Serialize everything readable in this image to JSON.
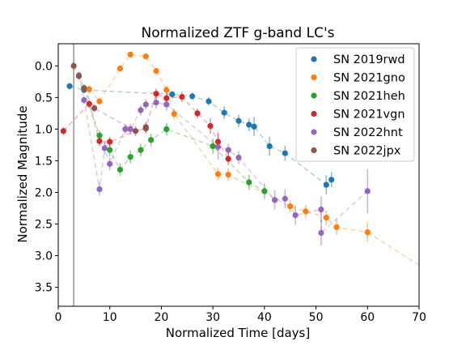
{
  "chart_data": {
    "type": "scatter",
    "title": "Normalized ZTF g-band LC's",
    "xlabel": "Normalized Time [days]",
    "ylabel": "Normalized Magnitude",
    "xlim": [
      0,
      70
    ],
    "ylim": [
      3.8,
      -0.35
    ],
    "y_inverted": true,
    "legend_position": "top-right",
    "xticks": [
      0,
      10,
      20,
      30,
      40,
      50,
      60,
      70
    ],
    "yticks": [
      0.0,
      0.5,
      1.0,
      1.5,
      2.0,
      2.5,
      3.0,
      3.5
    ],
    "xtick_labels": [
      "0",
      "10",
      "20",
      "30",
      "40",
      "50",
      "60",
      "70"
    ],
    "ytick_labels": [
      "0.0",
      "0.5",
      "1.0",
      "1.5",
      "2.0",
      "2.5",
      "3.0",
      "3.5"
    ],
    "series": [
      {
        "name": "SN 2019rwd",
        "color": "#1f77b4",
        "points": [
          {
            "x": 2.2,
            "y": 0.32,
            "err": 0.05
          },
          {
            "x": 5.0,
            "y": 0.38,
            "err": 0.05
          },
          {
            "x": 22.1,
            "y": 0.45,
            "err": 0.06
          },
          {
            "x": 26.0,
            "y": 0.48,
            "err": 0.06
          },
          {
            "x": 29.2,
            "y": 0.56,
            "err": 0.07
          },
          {
            "x": 32.2,
            "y": 0.74,
            "err": 0.1
          },
          {
            "x": 35.0,
            "y": 0.87,
            "err": 0.1
          },
          {
            "x": 37.0,
            "y": 0.93,
            "err": 0.1
          },
          {
            "x": 38.0,
            "y": 0.96,
            "err": 0.15
          },
          {
            "x": 41.0,
            "y": 1.27,
            "err": 0.15
          },
          {
            "x": 44.0,
            "y": 1.38,
            "err": 0.12
          },
          {
            "x": 52.0,
            "y": 1.88,
            "err": 0.15
          },
          {
            "x": 53.0,
            "y": 1.8,
            "err": 0.12
          }
        ]
      },
      {
        "name": "SN 2021gno",
        "color": "#ff7f0e",
        "points": [
          {
            "x": 6.0,
            "y": 0.37,
            "err": 0.06
          },
          {
            "x": 8.0,
            "y": 0.56,
            "err": 0.06
          },
          {
            "x": 12.0,
            "y": 0.04,
            "err": 0.05
          },
          {
            "x": 14.0,
            "y": -0.18,
            "err": 0.04
          },
          {
            "x": 17.0,
            "y": -0.15,
            "err": 0.04
          },
          {
            "x": 19.0,
            "y": 0.08,
            "err": 0.05
          },
          {
            "x": 21.0,
            "y": 0.38,
            "err": 0.06
          },
          {
            "x": 22.5,
            "y": 0.76,
            "err": 0.08
          },
          {
            "x": 31.0,
            "y": 1.71,
            "err": 0.1
          },
          {
            "x": 33.0,
            "y": 1.72,
            "err": 0.1
          },
          {
            "x": 45.0,
            "y": 2.22,
            "err": 0.1
          },
          {
            "x": 48.0,
            "y": 2.3,
            "err": 0.1
          },
          {
            "x": 52.0,
            "y": 2.4,
            "err": 0.12
          },
          {
            "x": 54.0,
            "y": 2.55,
            "err": 0.12
          },
          {
            "x": 60.0,
            "y": 2.63,
            "err": 0.15
          }
        ],
        "extension": {
          "from": [
            60.0,
            2.63
          ],
          "to": [
            70.0,
            3.15
          ]
        }
      },
      {
        "name": "SN 2021heh",
        "color": "#2ca02c",
        "points": [
          {
            "x": 5.0,
            "y": 0.35,
            "err": 0.06
          },
          {
            "x": 8.0,
            "y": 1.1,
            "err": 0.08
          },
          {
            "x": 10.0,
            "y": 1.33,
            "err": 0.1
          },
          {
            "x": 12.0,
            "y": 1.64,
            "err": 0.1
          },
          {
            "x": 14.0,
            "y": 1.44,
            "err": 0.1
          },
          {
            "x": 16.0,
            "y": 1.33,
            "err": 0.1
          },
          {
            "x": 18.0,
            "y": 1.17,
            "err": 0.1
          },
          {
            "x": 21.0,
            "y": 1.0,
            "err": 0.1
          },
          {
            "x": 30.0,
            "y": 1.27,
            "err": 0.12
          },
          {
            "x": 37.0,
            "y": 1.84,
            "err": 0.12
          },
          {
            "x": 40.0,
            "y": 1.98,
            "err": 0.12
          }
        ]
      },
      {
        "name": "SN 2021vgn",
        "color": "#d62728",
        "points": [
          {
            "x": 1.0,
            "y": 1.03,
            "err": 0.06
          },
          {
            "x": 6.0,
            "y": 0.6,
            "err": 0.06
          },
          {
            "x": 8.0,
            "y": 1.19,
            "err": 0.08
          },
          {
            "x": 10.0,
            "y": 1.2,
            "err": 0.08
          },
          {
            "x": 17.0,
            "y": 0.97,
            "err": 0.08
          },
          {
            "x": 19.0,
            "y": 0.44,
            "err": 0.08
          },
          {
            "x": 21.0,
            "y": 0.51,
            "err": 0.08
          },
          {
            "x": 24.0,
            "y": 0.49,
            "err": 0.08
          },
          {
            "x": 27.0,
            "y": 0.75,
            "err": 0.08
          },
          {
            "x": 29.5,
            "y": 0.95,
            "err": 0.12
          },
          {
            "x": 31.0,
            "y": 1.2,
            "err": 0.15
          },
          {
            "x": 33.0,
            "y": 1.47,
            "err": 0.1
          }
        ]
      },
      {
        "name": "SN 2022hnt",
        "color": "#9467bd",
        "points": [
          {
            "x": 4.0,
            "y": 0.15,
            "err": 0.06
          },
          {
            "x": 5.0,
            "y": 0.54,
            "err": 0.06
          },
          {
            "x": 8.0,
            "y": 1.95,
            "err": 0.1
          },
          {
            "x": 9.0,
            "y": 1.3,
            "err": 0.1
          },
          {
            "x": 10.0,
            "y": 1.55,
            "err": 0.1
          },
          {
            "x": 13.0,
            "y": 1.0,
            "err": 0.08
          },
          {
            "x": 14.0,
            "y": 1.0,
            "err": 0.08
          },
          {
            "x": 16.0,
            "y": 0.7,
            "err": 0.08
          },
          {
            "x": 17.0,
            "y": 0.61,
            "err": 0.08
          },
          {
            "x": 19.0,
            "y": 0.58,
            "err": 0.1
          },
          {
            "x": 21.0,
            "y": 0.61,
            "err": 0.1
          },
          {
            "x": 31.0,
            "y": 1.28,
            "err": 0.2
          },
          {
            "x": 33.0,
            "y": 1.33,
            "err": 0.1
          },
          {
            "x": 35.0,
            "y": 1.45,
            "err": 0.1
          },
          {
            "x": 42.0,
            "y": 2.12,
            "err": 0.15
          },
          {
            "x": 44.0,
            "y": 2.1,
            "err": 0.15
          },
          {
            "x": 46.0,
            "y": 2.36,
            "err": 0.15
          },
          {
            "x": 51.0,
            "y": 2.27,
            "err": 0.2
          },
          {
            "x": 51.0,
            "y": 2.64,
            "err": 0.2
          },
          {
            "x": 60.0,
            "y": 1.98,
            "err": 0.35
          }
        ]
      },
      {
        "name": "SN 2022jpx",
        "color": "#8c564b",
        "points": [
          {
            "x": 3.0,
            "y": 0.0,
            "err": 0.06
          },
          {
            "x": 4.0,
            "y": 0.16,
            "err": 0.06
          },
          {
            "x": 5.0,
            "y": 0.36,
            "err": 0.06
          },
          {
            "x": 7.0,
            "y": 0.67,
            "err": 0.06
          },
          {
            "x": 15.0,
            "y": 1.03,
            "err": 0.08
          },
          {
            "x": 17.0,
            "y": 0.99,
            "err": 0.08
          }
        ]
      }
    ],
    "vertical_line": {
      "x": 3.0,
      "color": "#9e9e9e"
    }
  }
}
